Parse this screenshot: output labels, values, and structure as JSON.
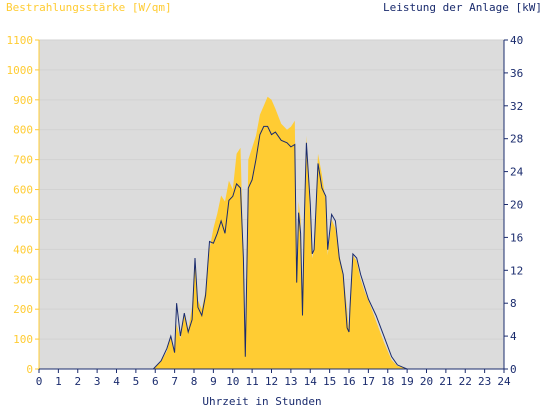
{
  "chart_data": {
    "type": "area",
    "ylabel_left": "Bestrahlungsstärke [W/qm]",
    "ylabel_right": "Leistung der Anlage [kW]",
    "xlabel": "Uhrzeit in Stunden",
    "xlim": [
      0,
      24
    ],
    "ylim_left": [
      0,
      1100
    ],
    "ylim_right": [
      0,
      40
    ],
    "x_ticks": [
      "0",
      "1",
      "2",
      "3",
      "4",
      "5",
      "6",
      "7",
      "8",
      "9",
      "10",
      "11",
      "12",
      "13",
      "14",
      "15",
      "16",
      "17",
      "18",
      "19",
      "20",
      "21",
      "22",
      "23",
      "24"
    ],
    "y_ticks_left": [
      "0",
      "100",
      "200",
      "300",
      "400",
      "500",
      "600",
      "700",
      "800",
      "900",
      "1000",
      "1100"
    ],
    "y_ticks_right": [
      "0",
      "4",
      "8",
      "12",
      "16",
      "20",
      "24",
      "28",
      "32",
      "36",
      "40"
    ],
    "grid": true,
    "colors": {
      "irradiance": "#ffcc33",
      "power": "#1a2b6d",
      "plot_bg": "#dcdcdc"
    },
    "series": [
      {
        "name": "Bestrahlungsstärke",
        "axis": "left",
        "x": [
          0,
          5.9,
          6.3,
          6.6,
          6.8,
          7.0,
          7.1,
          7.3,
          7.5,
          7.7,
          7.9,
          8.05,
          8.2,
          8.4,
          8.6,
          8.8,
          9.0,
          9.2,
          9.4,
          9.6,
          9.8,
          10.0,
          10.2,
          10.4,
          10.55,
          10.65,
          10.8,
          11.0,
          11.2,
          11.4,
          11.6,
          11.8,
          12.0,
          12.2,
          12.5,
          12.8,
          13.0,
          13.2,
          13.3,
          13.4,
          13.5,
          13.6,
          13.7,
          13.8,
          14.0,
          14.1,
          14.2,
          14.4,
          14.6,
          14.8,
          14.9,
          15.1,
          15.3,
          15.5,
          15.7,
          15.9,
          16.0,
          16.05,
          16.2,
          16.4,
          16.6,
          16.8,
          17.0,
          17.4,
          17.8,
          18.2,
          18.5,
          18.8,
          19.0,
          24
        ],
        "y": [
          0,
          0,
          25,
          60,
          110,
          60,
          150,
          100,
          190,
          130,
          210,
          360,
          230,
          200,
          260,
          400,
          470,
          520,
          580,
          560,
          630,
          600,
          720,
          740,
          380,
          50,
          700,
          740,
          780,
          850,
          880,
          910,
          900,
          870,
          820,
          800,
          810,
          830,
          300,
          560,
          500,
          200,
          540,
          780,
          500,
          370,
          400,
          720,
          650,
          560,
          380,
          500,
          470,
          380,
          320,
          200,
          120,
          200,
          380,
          360,
          300,
          260,
          230,
          160,
          90,
          30,
          10,
          5,
          0,
          0
        ]
      },
      {
        "name": "Leistung",
        "axis": "right",
        "x": [
          0,
          5.9,
          6.3,
          6.6,
          6.8,
          7.0,
          7.1,
          7.3,
          7.5,
          7.7,
          7.9,
          8.05,
          8.2,
          8.4,
          8.6,
          8.8,
          9.0,
          9.2,
          9.4,
          9.6,
          9.8,
          10.0,
          10.2,
          10.4,
          10.55,
          10.65,
          10.8,
          11.0,
          11.2,
          11.4,
          11.6,
          11.8,
          12.0,
          12.2,
          12.5,
          12.8,
          13.0,
          13.2,
          13.3,
          13.4,
          13.5,
          13.6,
          13.7,
          13.8,
          14.0,
          14.1,
          14.2,
          14.4,
          14.6,
          14.8,
          14.9,
          15.1,
          15.3,
          15.5,
          15.7,
          15.9,
          16.0,
          16.05,
          16.2,
          16.4,
          16.6,
          16.8,
          17.0,
          17.4,
          17.8,
          18.2,
          18.5,
          18.8,
          19.0,
          24
        ],
        "y": [
          0,
          0,
          1,
          2.5,
          4,
          2,
          8,
          4,
          6.8,
          4.5,
          6,
          13.5,
          7.5,
          6.5,
          9,
          15.5,
          15.3,
          16.5,
          18,
          16.5,
          20.5,
          21,
          22.5,
          22,
          13.5,
          1.5,
          22,
          23,
          25.5,
          28.5,
          29.5,
          29.5,
          28.5,
          28.8,
          27.8,
          27.5,
          27,
          27.3,
          10.5,
          19,
          16.5,
          6.5,
          18.5,
          27.5,
          20,
          14,
          14.5,
          25,
          22,
          21,
          14.5,
          18.8,
          18,
          13.5,
          11.5,
          5,
          4.5,
          7.5,
          14,
          13.5,
          11.5,
          10,
          8.5,
          6.5,
          4,
          1.5,
          0.5,
          0.2,
          0,
          0
        ]
      }
    ]
  }
}
